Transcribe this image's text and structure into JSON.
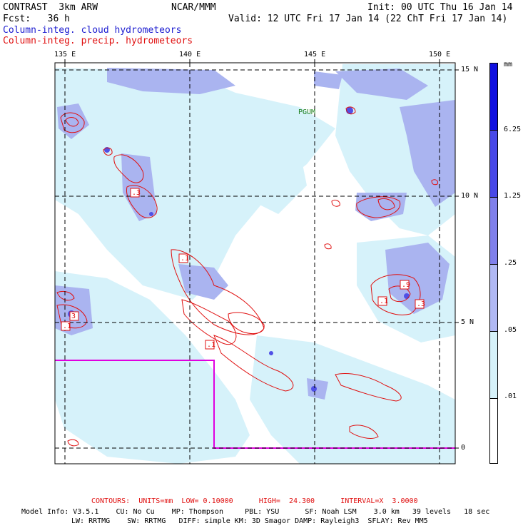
{
  "header": {
    "title": "CONTRAST  3km ARW",
    "center": "NCAR/MMM",
    "init": "Init: 00 UTC Thu 16 Jan 14",
    "fcst": "Fcst:   36 h",
    "valid": "Valid: 12 UTC Fri 17 Jan 14 (22 ChT Fri 17 Jan 14)",
    "field1": "Column-integ. cloud hydrometeors",
    "field2": "Column-integ. precip. hydrometeors"
  },
  "colors": {
    "frame": "#000000",
    "precip_contour": "#e01010",
    "cloud_fill_light": "#d6f2fa",
    "cloud_fill_mid": "#aab4f0",
    "cloud_fill_strong": "#6060e8",
    "domain_box": "#e000e0",
    "place_label": "#208020"
  },
  "map": {
    "lon_labels": [
      "135 E",
      "140 E",
      "145 E",
      "150 E"
    ],
    "lat_labels": [
      "15 N",
      "10 N",
      "5 N",
      "0"
    ],
    "place_label": "PGUM",
    "contour_labels": [
      ".3",
      ".1",
      ".1",
      ".1",
      ".9",
      ".3",
      ".1",
      "3"
    ]
  },
  "colorbar": {
    "unit": "mm",
    "levels": [
      "6.25",
      "1.25",
      ".25",
      ".05",
      ".01"
    ],
    "colors": [
      "#1010e0",
      "#4848e8",
      "#8080ec",
      "#b0b8f4",
      "#d6f2fa",
      "#ffffff"
    ]
  },
  "footer": {
    "contours": "CONTOURS:  UNITS=mm  LOW= 0.10000      HIGH=  24.300      INTERVAL=X  3.0000",
    "model1": "Model Info: V3.5.1    CU: No Cu    MP: Thompson     PBL: YSU      SF: Noah LSM    3.0 km   39 levels   18 sec",
    "model2": "LW: RRTMG    SW: RRTMG   DIFF: simple KM: 3D Smagor DAMP: Rayleigh3  SFLAY: Rev MM5"
  }
}
